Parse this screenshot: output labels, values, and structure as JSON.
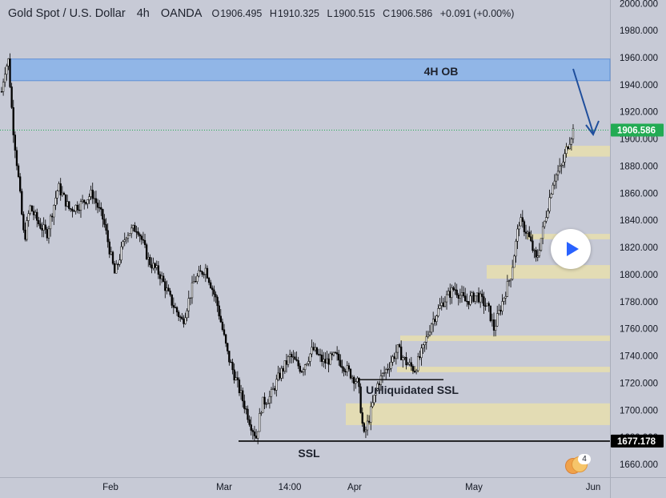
{
  "header": {
    "symbol": "Gold Spot / U.S. Dollar",
    "timeframe": "4h",
    "source": "OANDA",
    "open_key": "O",
    "open": "1906.495",
    "high_key": "H",
    "high": "1910.325",
    "low_key": "L",
    "low": "1900.515",
    "close_key": "C",
    "close": "1906.586",
    "change": "+0.091",
    "change_pct": "(+0.00%)"
  },
  "colors": {
    "background": "#c7cad6",
    "candle": "#000000",
    "ob_zone": "#8fb5e8",
    "fvg_zone": "#e7dfae",
    "arrow": "#1f4e9c",
    "price_label": "#22ab53",
    "ssl_label": "#000000"
  },
  "chart_data": {
    "type": "candlestick",
    "symbol": "Gold Spot / U.S. Dollar",
    "interval": "4h",
    "x_ticks": [
      "Feb",
      "Mar",
      "14:00",
      "Apr",
      "May",
      "Jun"
    ],
    "y_ticks": [
      1660,
      1680,
      1700,
      1720,
      1740,
      1760,
      1780,
      1800,
      1820,
      1840,
      1860,
      1880,
      1900,
      1920,
      1940,
      1960,
      1980,
      2000
    ],
    "ylim": [
      1648,
      2002
    ],
    "price_path": [
      {
        "t": 0.0,
        "p": 1935
      },
      {
        "t": 0.5,
        "p": 1950
      },
      {
        "t": 1.2,
        "p": 1958
      },
      {
        "t": 2.0,
        "p": 1910
      },
      {
        "t": 3.0,
        "p": 1870
      },
      {
        "t": 4.0,
        "p": 1825
      },
      {
        "t": 5.0,
        "p": 1850
      },
      {
        "t": 6.5,
        "p": 1838
      },
      {
        "t": 8.0,
        "p": 1830
      },
      {
        "t": 10.0,
        "p": 1865
      },
      {
        "t": 12.0,
        "p": 1848
      },
      {
        "t": 14.0,
        "p": 1852
      },
      {
        "t": 16.0,
        "p": 1860
      },
      {
        "t": 18.0,
        "p": 1840
      },
      {
        "t": 20.0,
        "p": 1800
      },
      {
        "t": 22.0,
        "p": 1830
      },
      {
        "t": 24.0,
        "p": 1835
      },
      {
        "t": 26.0,
        "p": 1810
      },
      {
        "t": 28.0,
        "p": 1800
      },
      {
        "t": 30.0,
        "p": 1780
      },
      {
        "t": 32.0,
        "p": 1765
      },
      {
        "t": 34.0,
        "p": 1795
      },
      {
        "t": 36.0,
        "p": 1805
      },
      {
        "t": 38.0,
        "p": 1780
      },
      {
        "t": 40.0,
        "p": 1740
      },
      {
        "t": 42.0,
        "p": 1715
      },
      {
        "t": 44.0,
        "p": 1690
      },
      {
        "t": 45.0,
        "p": 1680
      },
      {
        "t": 46.0,
        "p": 1705
      },
      {
        "t": 47.5,
        "p": 1710
      },
      {
        "t": 49.0,
        "p": 1725
      },
      {
        "t": 51.0,
        "p": 1740
      },
      {
        "t": 53.0,
        "p": 1730
      },
      {
        "t": 55.0,
        "p": 1745
      },
      {
        "t": 57.0,
        "p": 1735
      },
      {
        "t": 59.0,
        "p": 1740
      },
      {
        "t": 61.0,
        "p": 1730
      },
      {
        "t": 63.0,
        "p": 1720
      },
      {
        "t": 64.0,
        "p": 1680
      },
      {
        "t": 65.0,
        "p": 1695
      },
      {
        "t": 66.5,
        "p": 1720
      },
      {
        "t": 68.0,
        "p": 1730
      },
      {
        "t": 70.0,
        "p": 1745
      },
      {
        "t": 71.5,
        "p": 1735
      },
      {
        "t": 73.0,
        "p": 1730
      },
      {
        "t": 74.5,
        "p": 1745
      },
      {
        "t": 76.0,
        "p": 1765
      },
      {
        "t": 78.0,
        "p": 1780
      },
      {
        "t": 80.0,
        "p": 1790
      },
      {
        "t": 82.0,
        "p": 1780
      },
      {
        "t": 84.0,
        "p": 1785
      },
      {
        "t": 86.0,
        "p": 1775
      },
      {
        "t": 87.0,
        "p": 1760
      },
      {
        "t": 88.5,
        "p": 1780
      },
      {
        "t": 90.0,
        "p": 1800
      },
      {
        "t": 91.5,
        "p": 1840
      },
      {
        "t": 93.0,
        "p": 1830
      },
      {
        "t": 94.5,
        "p": 1810
      },
      {
        "t": 96.0,
        "p": 1840
      },
      {
        "t": 97.5,
        "p": 1870
      },
      {
        "t": 99.0,
        "p": 1880
      },
      {
        "t": 100.0,
        "p": 1895
      },
      {
        "t": 101.0,
        "p": 1906.586
      }
    ],
    "zones": [
      {
        "label": "4H OB",
        "kind": "order-block",
        "low": 1943,
        "high": 1959
      },
      {
        "kind": "fvg",
        "low": 1887,
        "high": 1895
      },
      {
        "kind": "fvg",
        "low": 1826,
        "high": 1830
      },
      {
        "kind": "fvg",
        "low": 1797,
        "high": 1807
      },
      {
        "kind": "fvg",
        "low": 1751,
        "high": 1755
      },
      {
        "kind": "fvg",
        "low": 1728,
        "high": 1732
      },
      {
        "kind": "fvg",
        "low": 1689,
        "high": 1705
      }
    ],
    "levels": [
      {
        "label": "SSL",
        "price": 1677.178
      },
      {
        "label": "Unliquidated SSL",
        "price": 1722.5
      }
    ],
    "last_price": "1906.586",
    "level_price": "1677.178",
    "annotations": {
      "ob": "4H OB",
      "ssl": "SSL",
      "unliquidated": "Unliquidated SSL"
    }
  },
  "badge": {
    "count": "4"
  }
}
